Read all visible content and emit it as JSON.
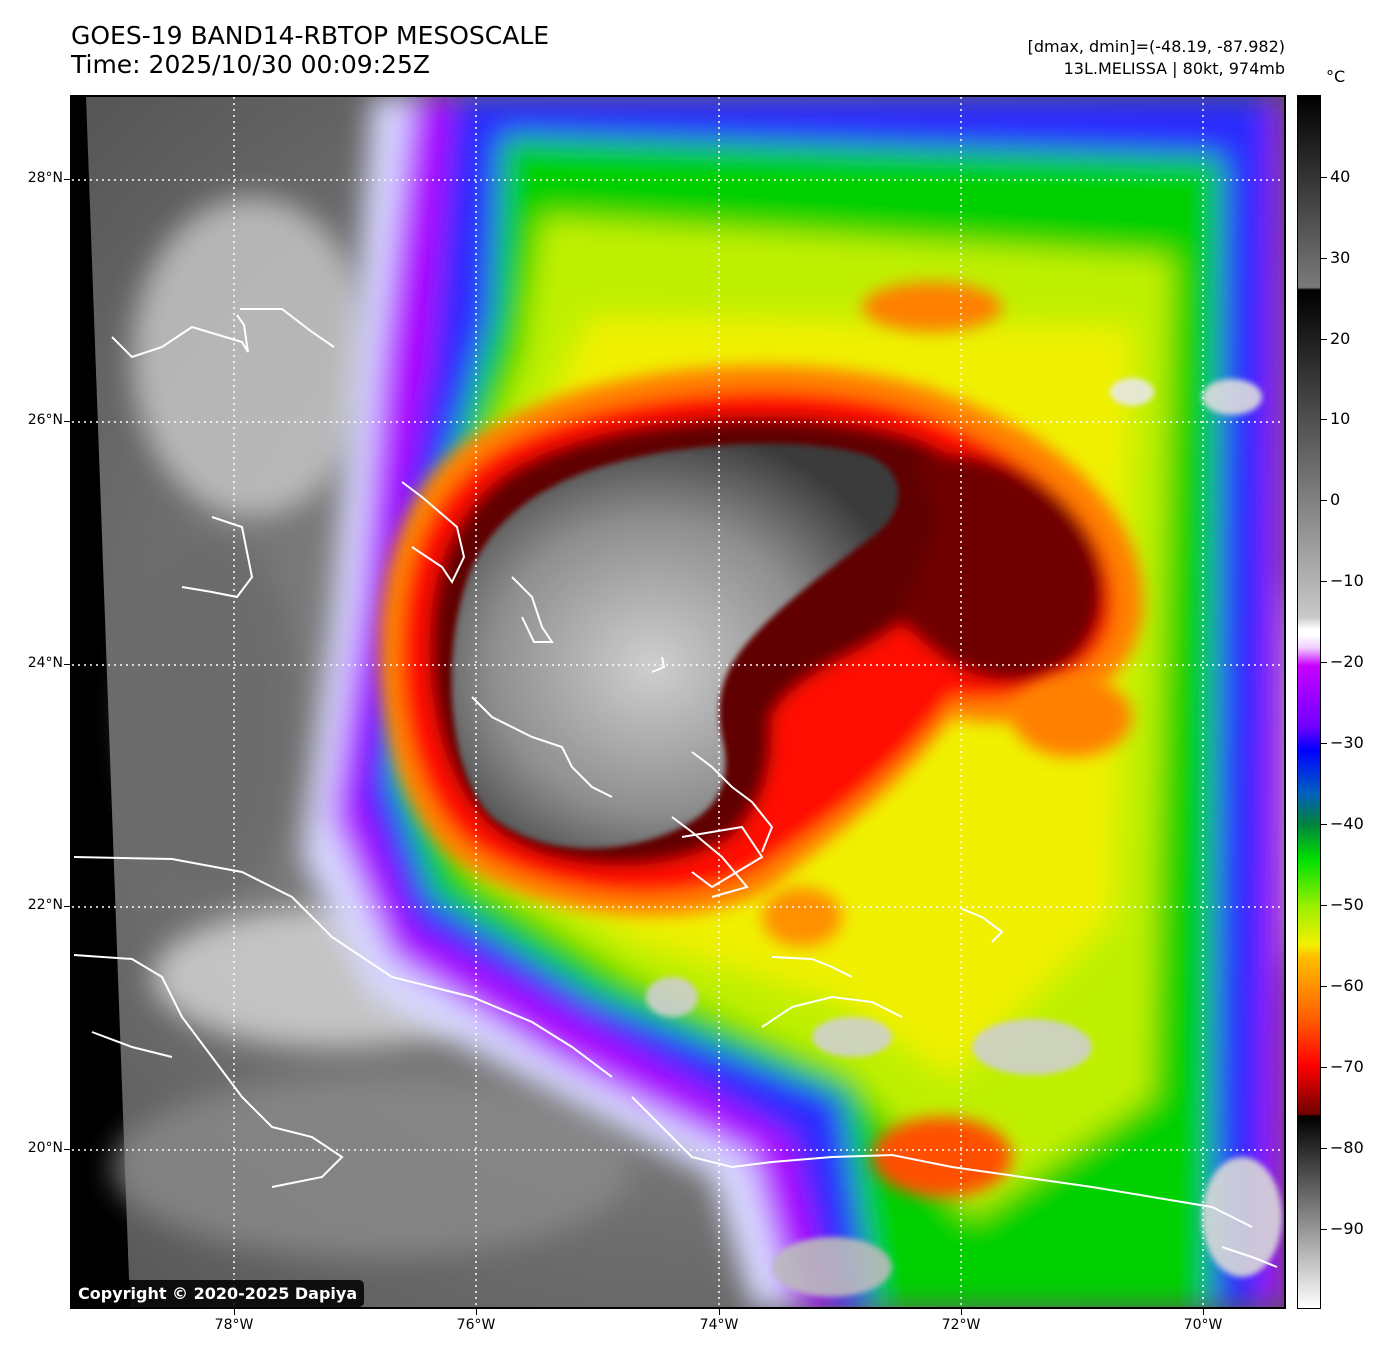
{
  "header": {
    "title_line1": "GOES-19 BAND14-RBTOP MESOSCALE",
    "title_line2": "Time: 2025/10/30 00:09:25Z",
    "info_line1": "[dmax, dmin]=(-48.19, -87.982)",
    "info_line2": "13L.MELISSA | 80kt, 974mb"
  },
  "map": {
    "lat_labels": [
      "28°N",
      "26°N",
      "24°N",
      "22°N",
      "20°N"
    ],
    "lon_labels": [
      "78°W",
      "76°W",
      "74°W",
      "72°W",
      "70°W"
    ],
    "gridlines": "dotted white",
    "copyright": "Copyright © 2020-2025 Dapiya"
  },
  "colorbar": {
    "unit": "°C",
    "tick_labels": [
      "40",
      "30",
      "20",
      "10",
      "0",
      "−10",
      "−20",
      "−30",
      "−40",
      "−50",
      "−60",
      "−70",
      "−80",
      "−90"
    ],
    "range": [
      -100,
      50
    ],
    "colors": {
      "warm_gray": "#7a7a7a",
      "cold_magenta": "#c800ff",
      "blue": "#2020ff",
      "green": "#00e000",
      "yellow": "#f0f000",
      "orange": "#ff8000",
      "red": "#ff0000",
      "dark_red": "#6a0000"
    }
  }
}
